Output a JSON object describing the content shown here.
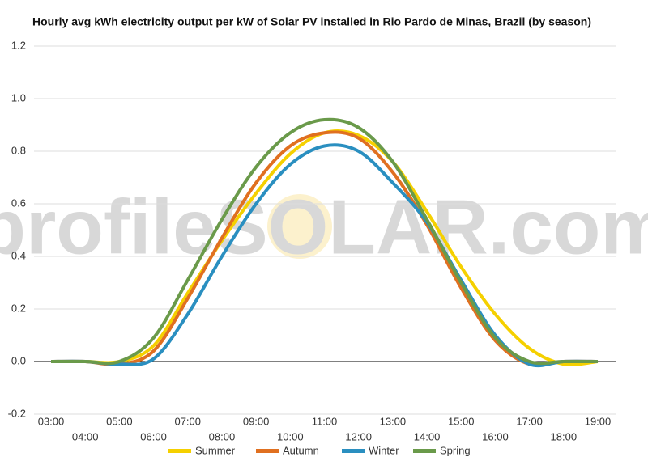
{
  "chart_data": {
    "type": "line",
    "title": "Hourly avg kWh electricity output per kW of Solar PV installed in Rio Pardo de Minas, Brazil (by season)",
    "watermark": "profileSOLAR.com",
    "categories": [
      "03:00",
      "04:00",
      "05:00",
      "06:00",
      "07:00",
      "08:00",
      "09:00",
      "10:00",
      "11:00",
      "12:00",
      "13:00",
      "14:00",
      "15:00",
      "16:00",
      "17:00",
      "18:00",
      "19:00"
    ],
    "series": [
      {
        "name": "Summer",
        "color": "#f5d000",
        "values": [
          0,
          0,
          0,
          0.06,
          0.26,
          0.46,
          0.64,
          0.79,
          0.87,
          0.86,
          0.76,
          0.57,
          0.36,
          0.18,
          0.05,
          -0.01,
          0
        ]
      },
      {
        "name": "Autumn",
        "color": "#e07020",
        "values": [
          0,
          0,
          -0.01,
          0.04,
          0.24,
          0.47,
          0.68,
          0.82,
          0.87,
          0.85,
          0.72,
          0.52,
          0.28,
          0.08,
          -0.01,
          0,
          0
        ]
      },
      {
        "name": "Winter",
        "color": "#2a8fc0",
        "values": [
          0,
          0,
          -0.01,
          0.01,
          0.18,
          0.4,
          0.6,
          0.75,
          0.82,
          0.8,
          0.68,
          0.53,
          0.31,
          0.1,
          -0.01,
          0,
          0
        ]
      },
      {
        "name": "Spring",
        "color": "#6a9a4a",
        "values": [
          0,
          0,
          0,
          0.09,
          0.31,
          0.54,
          0.74,
          0.87,
          0.92,
          0.89,
          0.76,
          0.54,
          0.3,
          0.09,
          0,
          0,
          0
        ]
      }
    ],
    "ylim": [
      -0.2,
      1.2
    ],
    "yticks": [
      -0.2,
      {
        "value": 0,
        "label": "0.0"
      },
      0.2,
      0.4,
      0.6,
      0.8,
      {
        "value": 1,
        "label": "1.0"
      },
      1.2
    ],
    "grid": true,
    "legend": "bottom"
  }
}
